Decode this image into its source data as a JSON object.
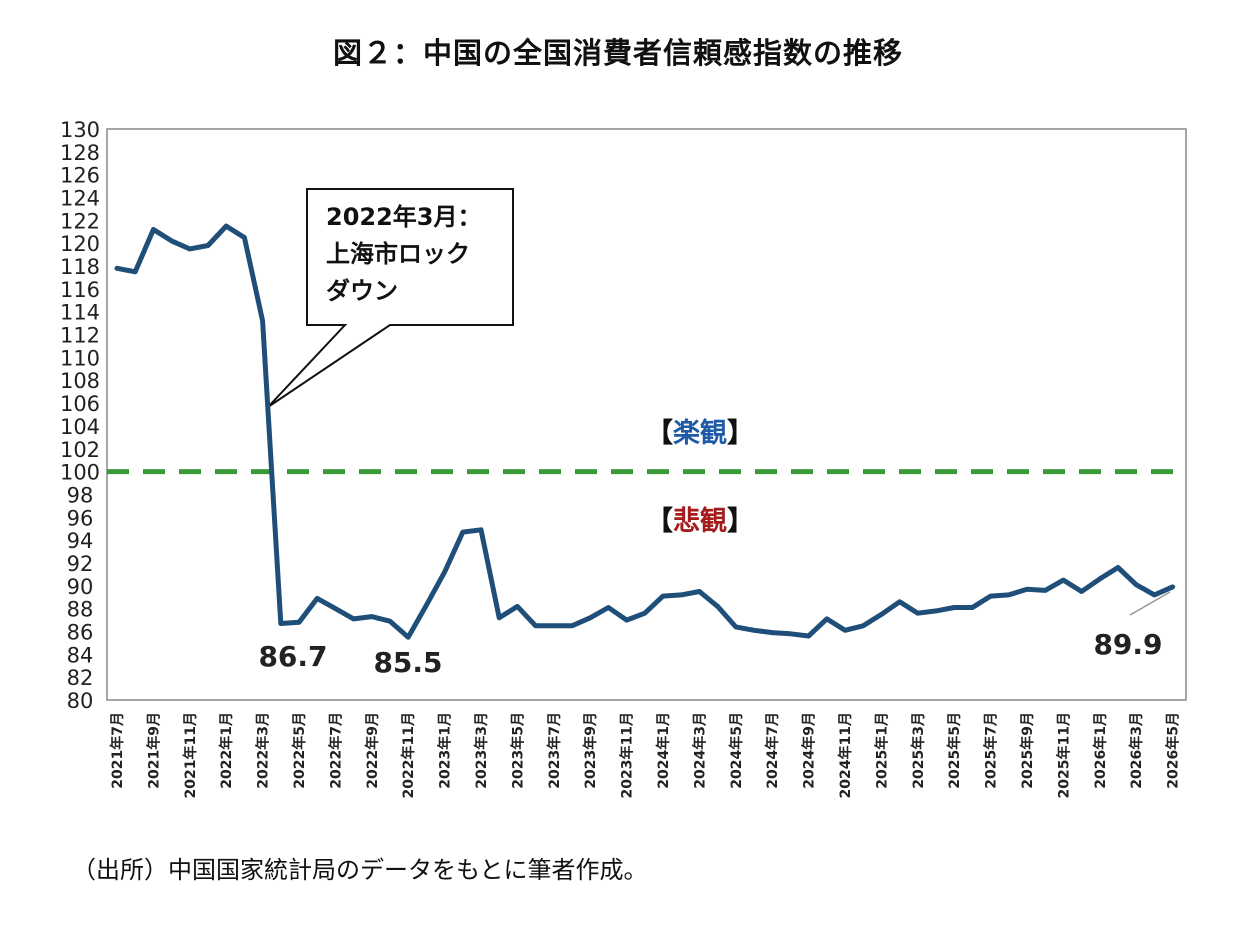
{
  "title": "図２：中国の全国消費者信頼感指数の推移",
  "source": "（出所）中国国家統計局のデータをもとに筆者作成。",
  "colors": {
    "line": "#1f4e79",
    "reference": "#3a9a3a",
    "optimism": "#1f5aa6",
    "pessimism": "#a51c1c"
  },
  "chart_data": {
    "type": "line",
    "title": "図２：中国の全国消費者信頼感指数の推移",
    "xlabel": "",
    "ylabel": "",
    "ylim": [
      80,
      130
    ],
    "yticks": [
      80,
      82,
      84,
      86,
      88,
      90,
      92,
      94,
      96,
      98,
      100,
      102,
      104,
      106,
      108,
      110,
      112,
      114,
      116,
      118,
      120,
      122,
      124,
      126,
      128,
      130
    ],
    "xtick_labels": [
      "2021年7月",
      "2021年9月",
      "2021年11月",
      "2022年1月",
      "2022年3月",
      "2022年5月",
      "2022年7月",
      "2022年9月",
      "2022年11月",
      "2023年1月",
      "2023年3月",
      "2023年5月",
      "2023年7月",
      "2023年9月",
      "2023年11月",
      "2024年1月",
      "2024年3月",
      "2024年5月",
      "2024年7月",
      "2024年9月",
      "2024年11月",
      "2025年1月",
      "2025年3月",
      "2025年5月",
      "2025年7月",
      "2025年9月",
      "2025年11月",
      "2026年1月",
      "2026年3月",
      "2026年5月"
    ],
    "x": [
      "2021年7月",
      "2021年8月",
      "2021年9月",
      "2021年10月",
      "2021年11月",
      "2021年12月",
      "2022年1月",
      "2022年2月",
      "2022年3月",
      "2022年4月",
      "2022年5月",
      "2022年6月",
      "2022年7月",
      "2022年8月",
      "2022年9月",
      "2022年10月",
      "2022年11月",
      "2022年12月",
      "2023年1月",
      "2023年2月",
      "2023年3月",
      "2023年4月",
      "2023年5月",
      "2023年6月",
      "2023年7月",
      "2023年8月",
      "2023年9月",
      "2023年10月",
      "2023年11月",
      "2023年12月",
      "2024年1月",
      "2024年2月",
      "2024年3月",
      "2024年4月",
      "2024年5月",
      "2024年6月",
      "2024年7月",
      "2024年8月",
      "2024年9月",
      "2024年10月",
      "2024年11月",
      "2024年12月",
      "2025年1月",
      "2025年2月",
      "2025年3月",
      "2025年4月",
      "2025年5月",
      "2025年6月",
      "2025年7月",
      "2025年8月",
      "2025年9月",
      "2025年10月",
      "2025年11月",
      "2025年12月",
      "2026年1月",
      "2026年2月",
      "2026年3月",
      "2026年4月",
      "2026年5月"
    ],
    "series": [
      {
        "values": [
          117.8,
          117.5,
          121.2,
          120.2,
          119.5,
          119.8,
          121.5,
          120.5,
          113.2,
          86.7,
          86.8,
          88.9,
          88.0,
          87.1,
          87.3,
          86.9,
          85.5,
          88.3,
          91.2,
          94.7,
          94.9,
          87.2,
          88.2,
          86.5,
          86.5,
          86.5,
          87.2,
          88.1,
          87.0,
          87.6,
          89.1,
          89.2,
          89.5,
          88.2,
          86.4,
          86.1,
          85.9,
          85.8,
          85.6,
          87.1,
          86.1,
          86.5,
          87.5,
          88.6,
          87.6,
          87.8,
          88.1,
          88.1,
          89.1,
          89.2,
          89.7,
          89.6,
          90.5,
          89.5,
          90.6,
          91.6,
          90.1,
          89.2,
          89.9
        ]
      }
    ],
    "reference_line": {
      "y": 100,
      "style": "dashed"
    },
    "annotations": {
      "callout": [
        "2022年3月：",
        "上海市ロック",
        "ダウン"
      ],
      "optimism": "【楽観】",
      "pessimism": "【悲観】",
      "point_labels": [
        {
          "x": "2022年4月",
          "text": "86.7"
        },
        {
          "x": "2022年11月",
          "text": "85.5"
        },
        {
          "x": "2026年5月",
          "text": "89.9"
        }
      ]
    },
    "grid": false,
    "legend": "none"
  }
}
